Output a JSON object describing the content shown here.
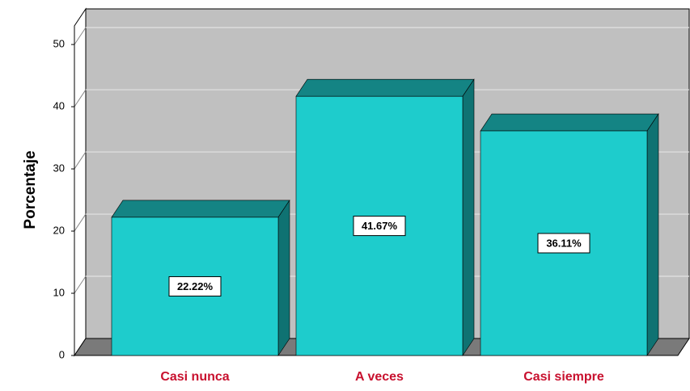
{
  "chart_data": {
    "type": "bar3d",
    "y_label": "Porcentaje",
    "categories": [
      "Casi nunca",
      "A veces",
      "Casi siempre"
    ],
    "values": [
      22.22,
      41.67,
      36.11
    ],
    "value_labels": [
      "22.22%",
      "41.67%",
      "36.11%"
    ],
    "color": "#1ecccc",
    "ylim": [
      0,
      53
    ],
    "yticks": [
      0,
      10,
      20,
      30,
      40,
      50
    ],
    "grid": true
  }
}
